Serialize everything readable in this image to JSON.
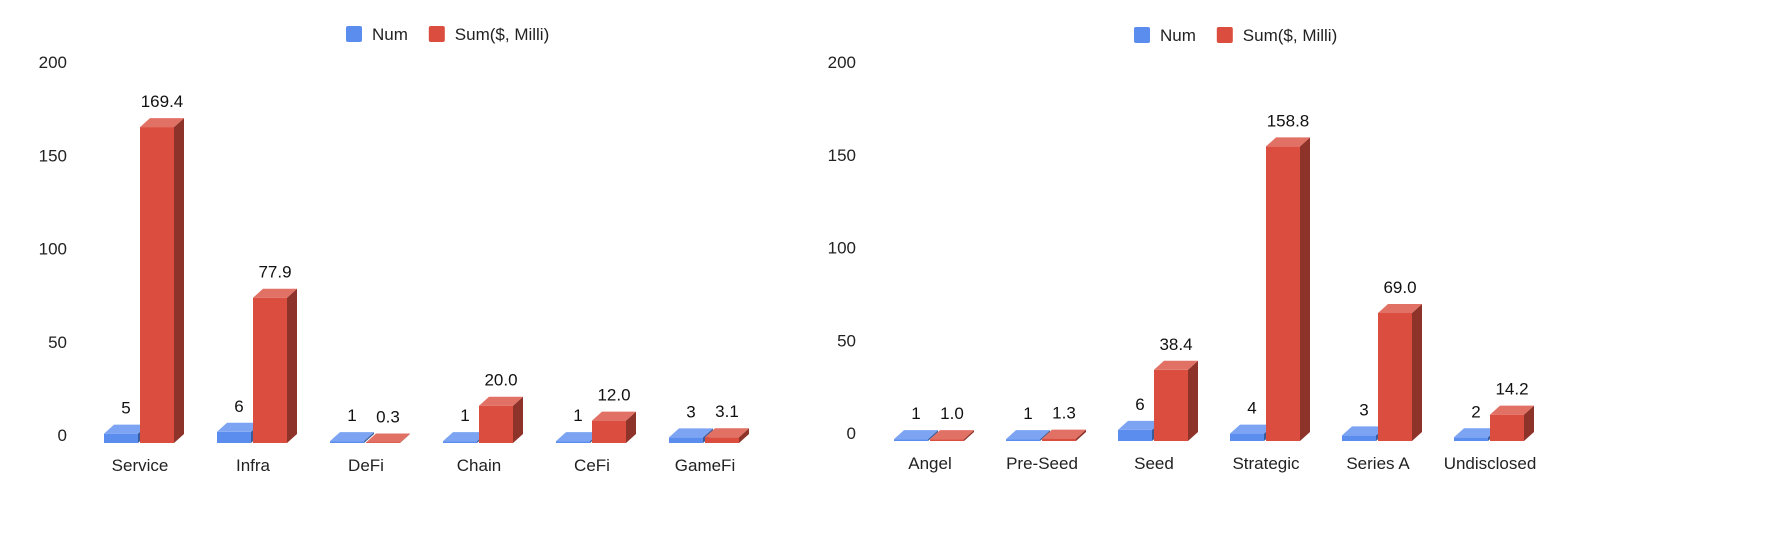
{
  "chart_data": [
    {
      "type": "bar",
      "categories": [
        "Service",
        "Infra",
        "DeFi",
        "Chain",
        "CeFi",
        "GameFi"
      ],
      "series": [
        {
          "name": "Num",
          "values": [
            5,
            6,
            1,
            1,
            1,
            3
          ],
          "labels": [
            "5",
            "6",
            "1",
            "1",
            "1",
            "3"
          ],
          "color": "#5b8def"
        },
        {
          "name": "Sum($, Milli)",
          "values": [
            169.4,
            77.9,
            0.3,
            20.0,
            12.0,
            3.1
          ],
          "labels": [
            "169.4",
            "77.9",
            "0.3",
            "20.0",
            "12.0",
            "3.1"
          ],
          "color": "#db4e3f"
        }
      ],
      "ylim": [
        0,
        200
      ],
      "yticks": [
        "0",
        "50",
        "100",
        "150",
        "200"
      ],
      "grid": false,
      "legend": "top-center",
      "style": "3d"
    },
    {
      "type": "bar",
      "categories": [
        "Angel",
        "Pre-Seed",
        "Seed",
        "Strategic",
        "Series A",
        "Undisclosed"
      ],
      "series": [
        {
          "name": "Num",
          "values": [
            1,
            1,
            6,
            4,
            3,
            2
          ],
          "labels": [
            "1",
            "1",
            "6",
            "4",
            "3",
            "2"
          ],
          "color": "#5b8def"
        },
        {
          "name": "Sum($, Milli)",
          "values": [
            1.0,
            1.3,
            38.4,
            158.8,
            69.0,
            14.2
          ],
          "labels": [
            "1.0",
            "1.3",
            "38.4",
            "158.8",
            "69.0",
            "14.2"
          ],
          "color": "#db4e3f"
        }
      ],
      "ylim": [
        0,
        200
      ],
      "yticks": [
        "0",
        "50",
        "100",
        "150",
        "200"
      ],
      "grid": false,
      "legend": "top-center",
      "style": "3d"
    }
  ]
}
